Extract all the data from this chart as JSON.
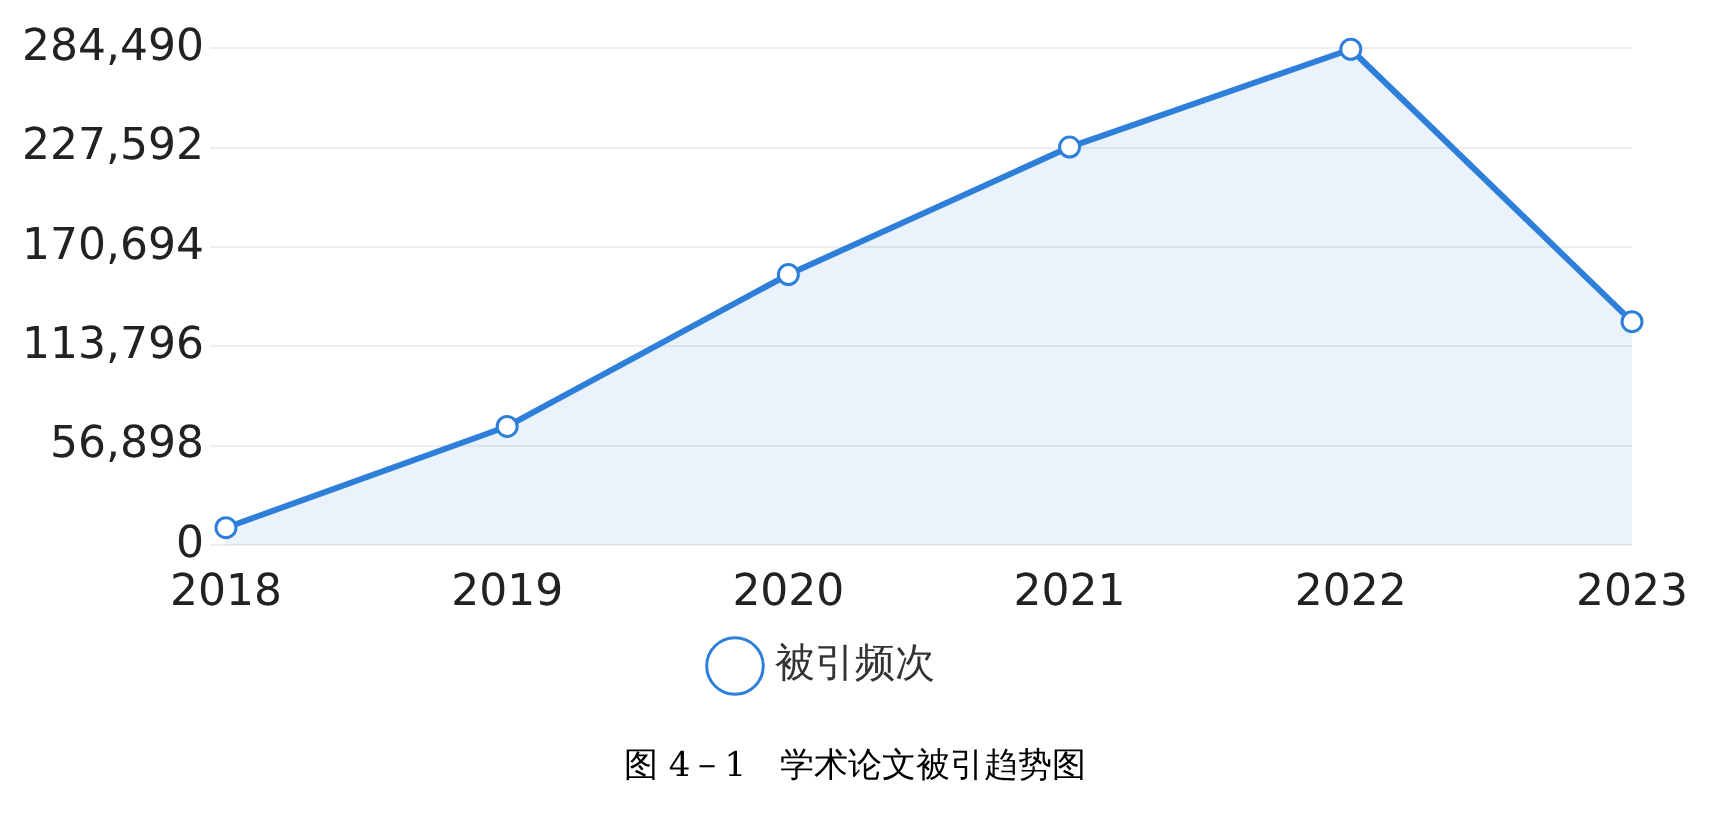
{
  "chart_data": {
    "type": "area",
    "categories": [
      "2018",
      "2019",
      "2020",
      "2021",
      "2022",
      "2023"
    ],
    "series": [
      {
        "name": "被引频次",
        "color": "#2e7fd9",
        "values": [
          10000,
          68000,
          155000,
          228000,
          284000,
          128000
        ]
      }
    ],
    "ylim": [
      0,
      284490
    ],
    "yticks": [
      0,
      {
        "value": 56898,
        "label": "56,898"
      },
      {
        "value": 113796,
        "label": "113,796"
      },
      {
        "value": 170694,
        "label": "170,694"
      },
      {
        "value": 227592,
        "label": "227,592"
      },
      {
        "value": 284490,
        "label": "284,490"
      }
    ],
    "grid": "y",
    "legend": "bottom",
    "marker": "circle",
    "annotations": [
      "图 4－1　学术论文被引趋势图"
    ]
  }
}
